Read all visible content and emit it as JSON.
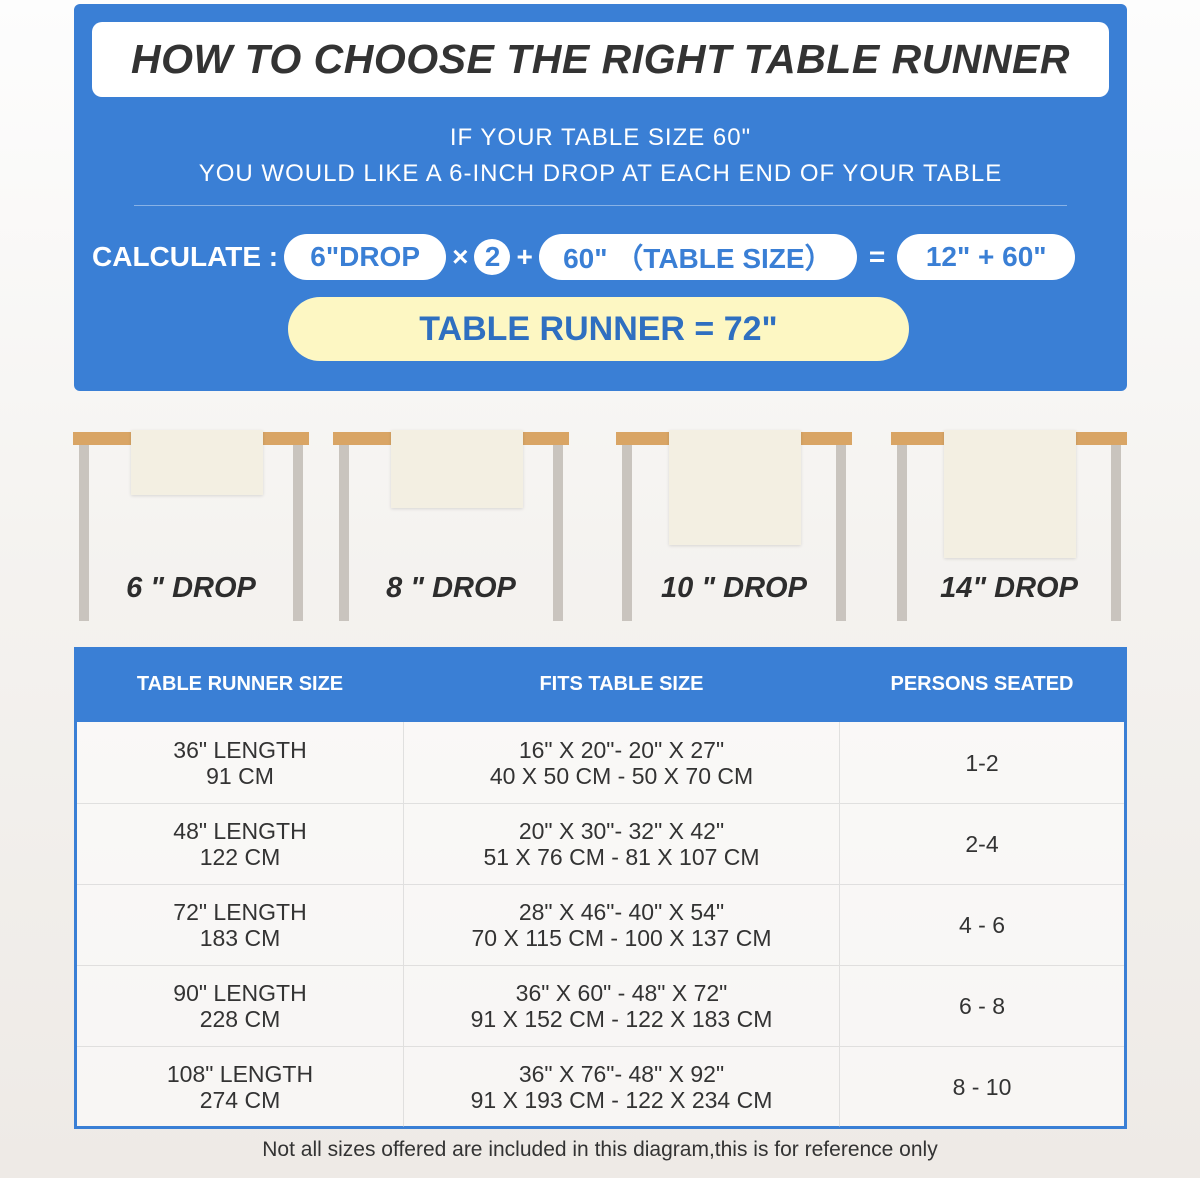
{
  "header": {
    "title": "HOW TO CHOOSE THE RIGHT TABLE RUNNER",
    "line1": "IF YOUR TABLE SIZE 60\"",
    "line2": "YOU WOULD LIKE A 6-INCH DROP AT EACH END OF YOUR TABLE"
  },
  "calc": {
    "label": "CALCULATE :",
    "drop": "6\"DROP",
    "times": "×",
    "multiplier": "2",
    "plus": "+",
    "table": "60\" （TABLE SIZE）",
    "equals": "=",
    "sum": "12\" + 60\"",
    "result": "TABLE RUNNER = 72\""
  },
  "drops": [
    {
      "label": "6 \" DROP"
    },
    {
      "label": "8 \" DROP"
    },
    {
      "label": "10 \" DROP"
    },
    {
      "label": "14\" DROP"
    }
  ],
  "table": {
    "headers": [
      "TABLE RUNNER SIZE",
      "FITS TABLE SIZE",
      "PERSONS SEATED"
    ],
    "rows": [
      {
        "size": "36\" LENGTH",
        "size_cm": "91 CM",
        "fits": "16\" X 20\"- 20\" X 27\"",
        "fits_cm": "40 X 50 CM - 50 X 70 CM",
        "persons": "1-2"
      },
      {
        "size": "48\" LENGTH",
        "size_cm": "122 CM",
        "fits": "20\" X 30\"- 32\" X 42\"",
        "fits_cm": "51 X 76 CM - 81 X 107 CM",
        "persons": "2-4"
      },
      {
        "size": "72\" LENGTH",
        "size_cm": "183 CM",
        "fits": "28\" X 46\"- 40\" X 54\"",
        "fits_cm": "70 X 115 CM - 100 X 137 CM",
        "persons": "4 - 6"
      },
      {
        "size": "90\" LENGTH",
        "size_cm": "228 CM",
        "fits": "36\" X 60\" - 48\" X 72\"",
        "fits_cm": "91 X 152 CM - 122 X 183 CM",
        "persons": "6 - 8"
      },
      {
        "size": "108\" LENGTH",
        "size_cm": "274 CM",
        "fits": "36\" X 76\"- 48\" X 92\"",
        "fits_cm": "91 X 193 CM - 122 X 234 CM",
        "persons": "8 - 10"
      }
    ]
  },
  "footer": "Not all sizes offered are included in this diagram,this is for reference only",
  "colors": {
    "blue": "#3a7fd5",
    "yellow": "#fdf7c3",
    "tabletop": "#d9a565"
  }
}
